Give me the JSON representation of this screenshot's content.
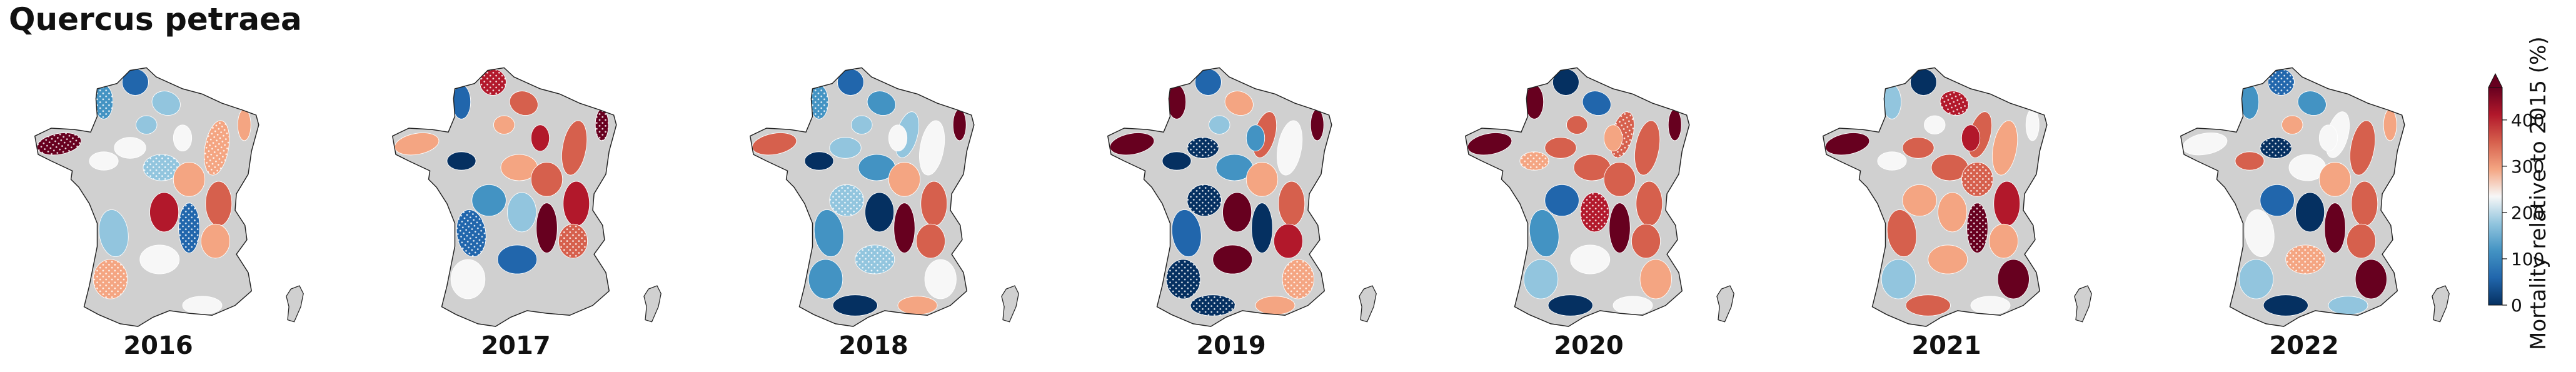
{
  "title": "Quercus petraea",
  "colorbar": {
    "label": "Mortality relative to 2015 (%)",
    "ticks": [
      "400",
      "300",
      "200",
      "100",
      "0"
    ],
    "colors": [
      "#053061",
      "#2166ac",
      "#4393c3",
      "#92c5de",
      "#f7f7f7",
      "#f4a582",
      "#d6604d",
      "#b2182b",
      "#67001f"
    ]
  },
  "maps": [
    {
      "year": "2016"
    },
    {
      "year": "2017"
    },
    {
      "year": "2018"
    },
    {
      "year": "2019"
    },
    {
      "year": "2020"
    },
    {
      "year": "2021"
    },
    {
      "year": "2022"
    }
  ],
  "no_data_color": "#d0d0d0"
}
